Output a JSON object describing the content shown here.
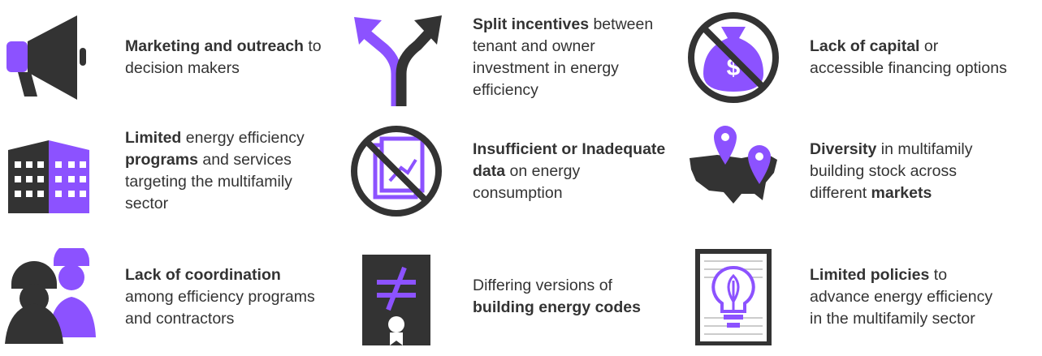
{
  "items": [
    {
      "parts": [
        "Marketing and outreach",
        " to decision makers"
      ]
    },
    {
      "parts": [
        "Split incentives",
        " between tenant and owner investment in energy efficiency"
      ]
    },
    {
      "parts": [
        "Lack of capital",
        " or accessible financing options"
      ]
    },
    {
      "parts": [
        "Limited",
        " energy efficiency ",
        "programs",
        " and services targeting the multifamily sector"
      ]
    },
    {
      "parts": [
        "Insufficient or Inadequate data",
        " on energy consumption"
      ]
    },
    {
      "parts": [
        "Diversity",
        " in multifamily building stock across different ",
        "markets"
      ]
    },
    {
      "parts": [
        "Lack of coordination",
        " among efficiency programs and contractors"
      ]
    },
    {
      "parts": [
        "Differing versions of ",
        "building energy codes"
      ]
    },
    {
      "parts": [
        "Limited policies",
        " to advance energy efficiency in the multifamily sector"
      ]
    }
  ]
}
